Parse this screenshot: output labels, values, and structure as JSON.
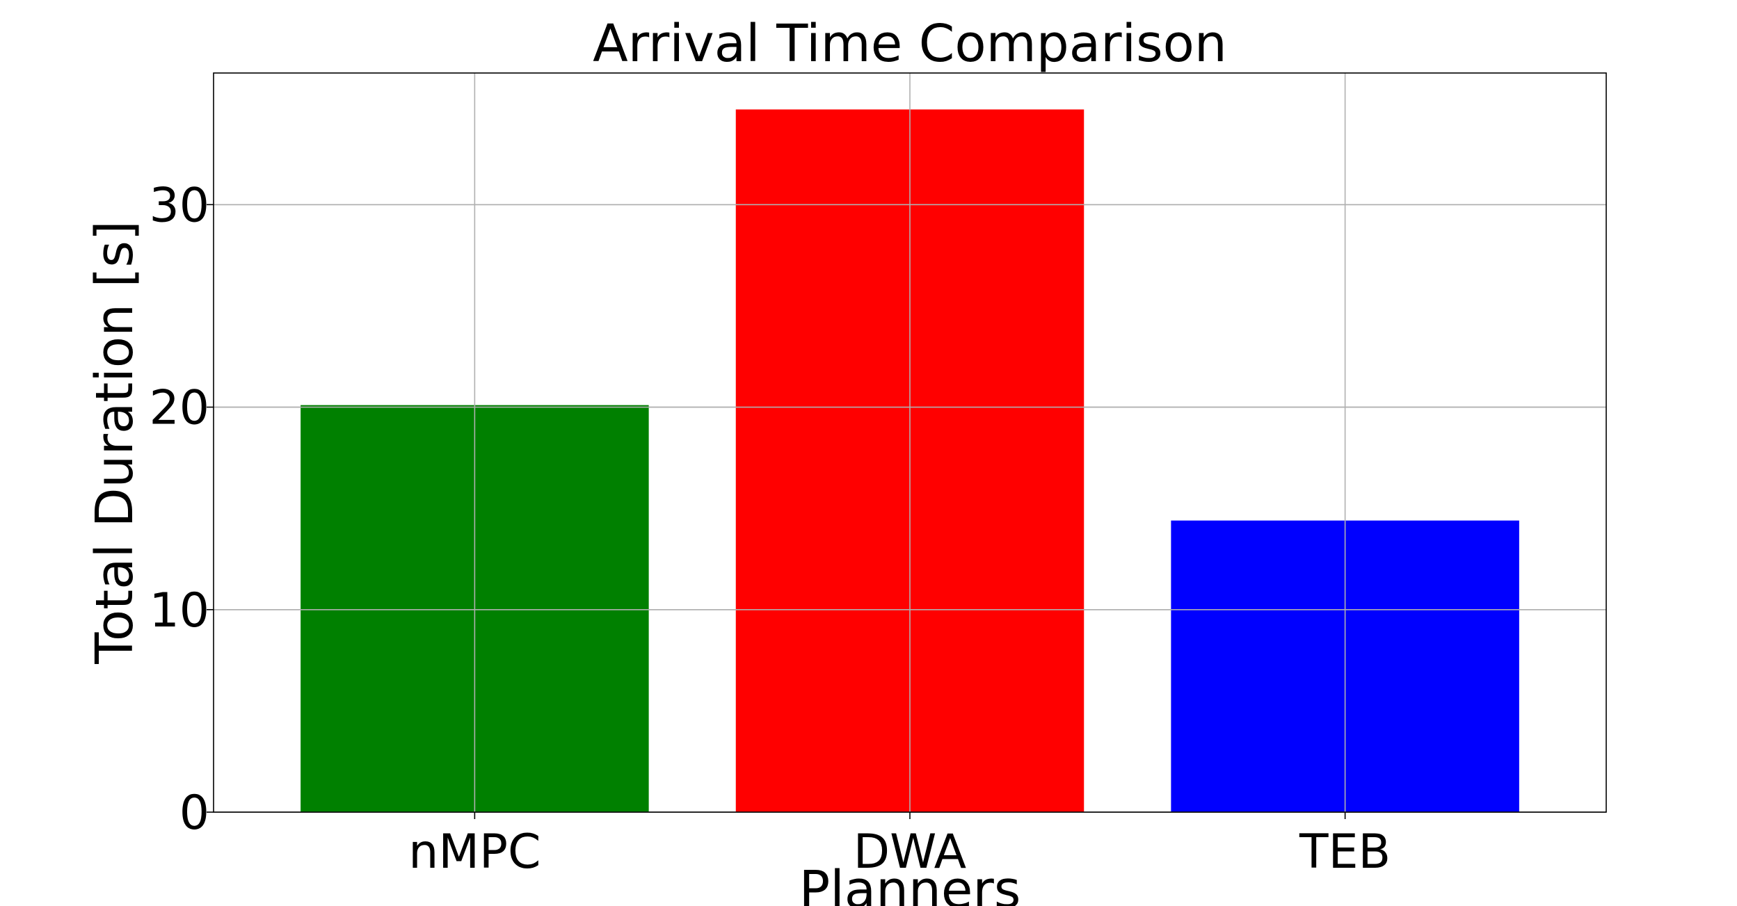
{
  "chart_data": {
    "type": "bar",
    "title": "Arrival Time Comparison",
    "xlabel": "Planners",
    "ylabel": "Total Duration [s]",
    "categories": [
      "nMPC",
      "DWA",
      "TEB"
    ],
    "values": [
      20.1,
      34.7,
      14.4
    ],
    "colors": [
      "#008000",
      "#ff0000",
      "#0000ff"
    ],
    "ylim": [
      0,
      36.5
    ],
    "yticks": [
      0,
      10,
      20,
      30
    ],
    "ytick_labels": [
      "0",
      "10",
      "20",
      "30"
    ],
    "grid": true,
    "legend": "none"
  }
}
